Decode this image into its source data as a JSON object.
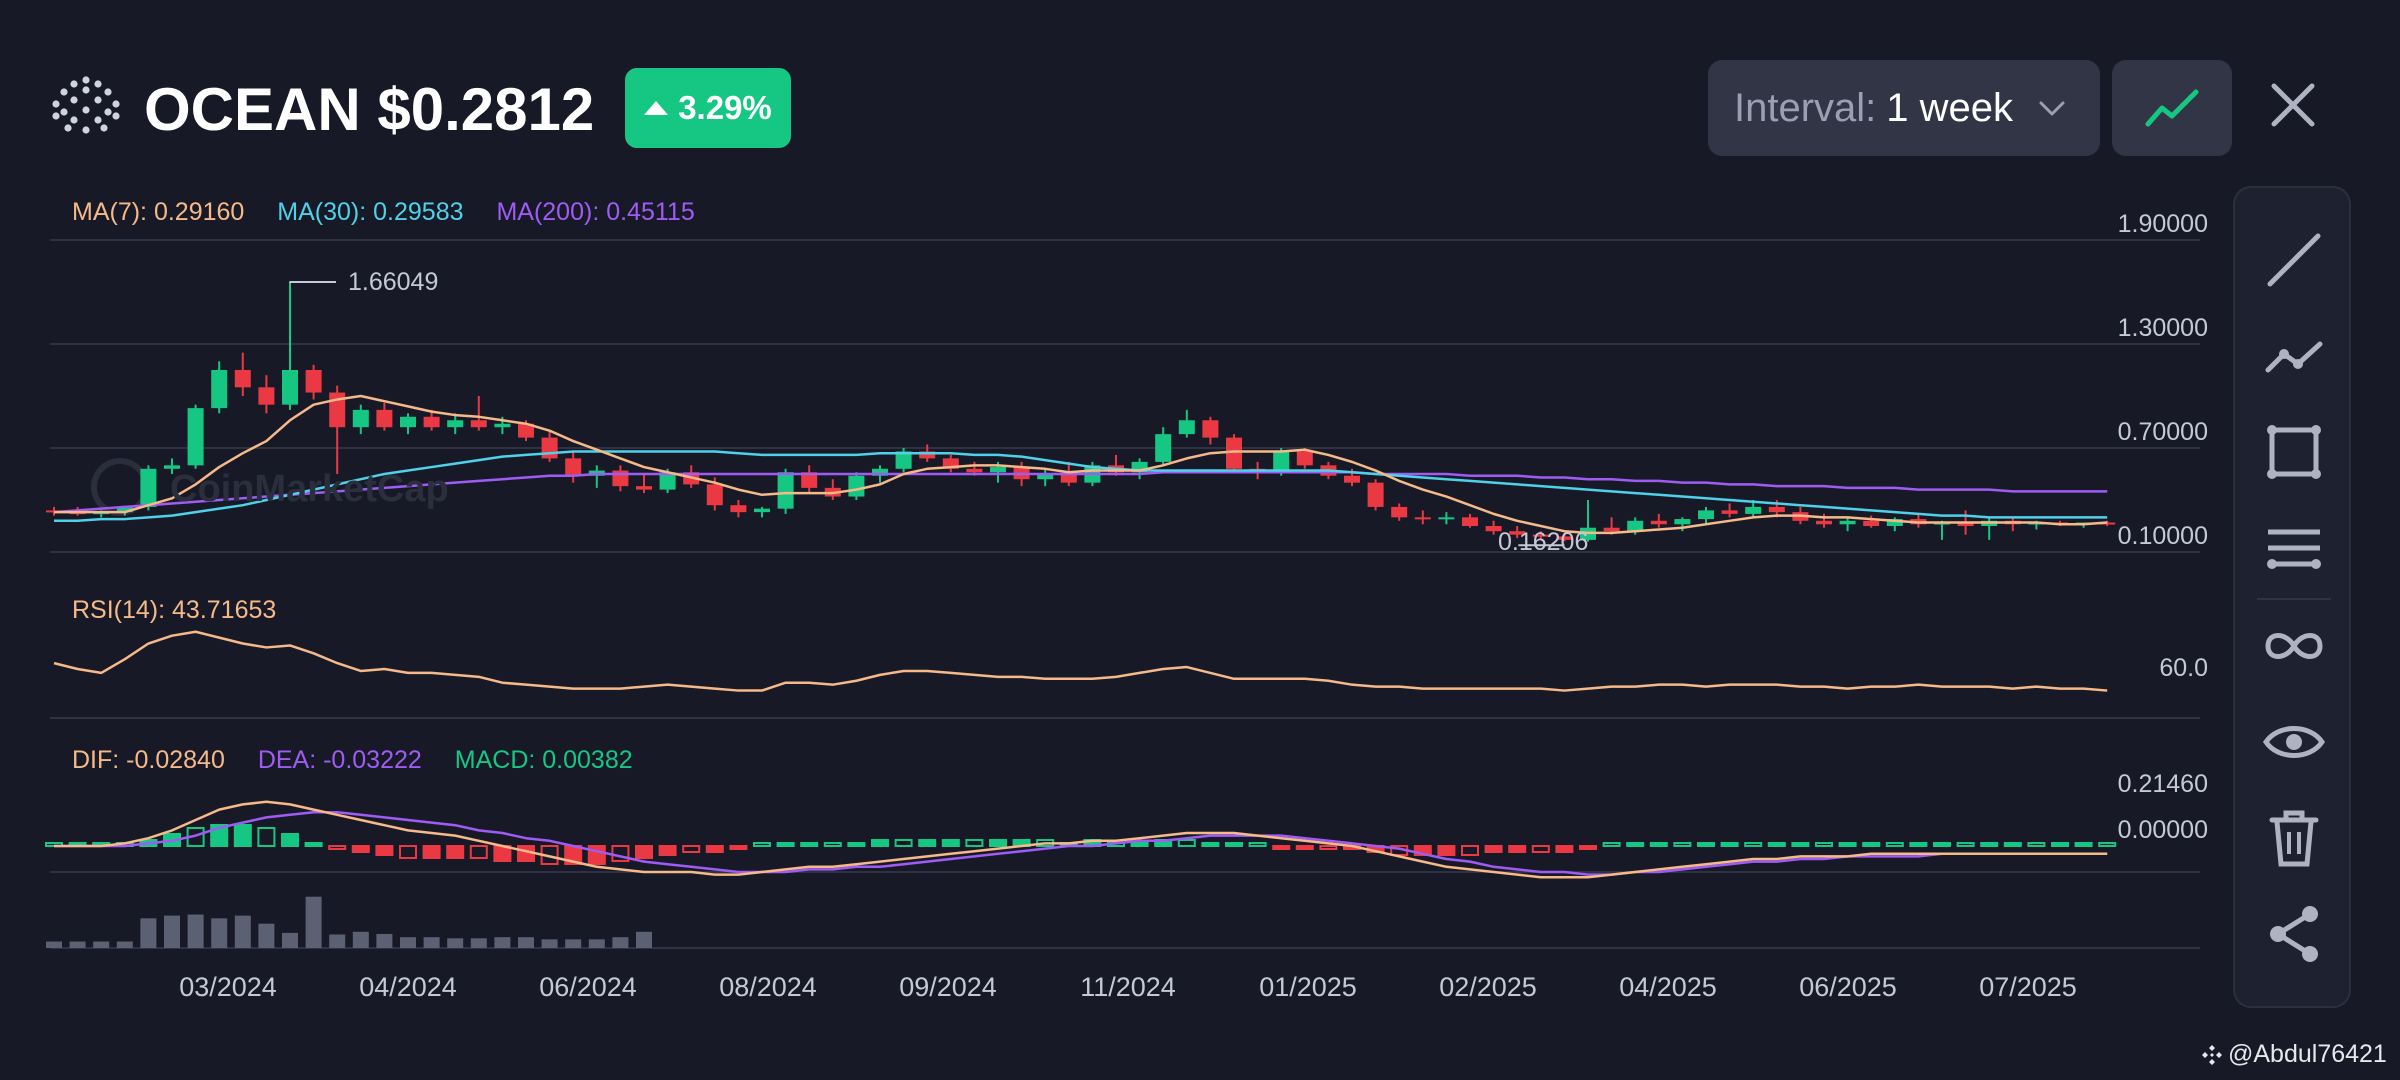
{
  "header": {
    "symbol": "OCEAN",
    "price": "$0.2812",
    "title_text": "OCEAN $0.2812",
    "change_percent": "3.29%",
    "change_direction": "up",
    "interval_label": "Interval:",
    "interval_value": "1 week",
    "chart_type_icon": "line-chart-icon",
    "close_icon": "close-icon"
  },
  "price_panel": {
    "legend": [
      {
        "label": "MA(7): 0.29160",
        "color": "#f6b98a"
      },
      {
        "label": "MA(30): 0.29583",
        "color": "#4fd1e9"
      },
      {
        "label": "MA(200): 0.45115",
        "color": "#9f5cf5"
      }
    ],
    "y_ticks": [
      "1.90000",
      "1.30000",
      "0.70000",
      "0.10000"
    ],
    "high_label": "1.66049",
    "low_label": "0.16206",
    "watermark": "CoinMarketCap"
  },
  "rsi_panel": {
    "legend": "RSI(14): 43.71653",
    "y_tick": "60.0"
  },
  "macd_panel": {
    "legend": [
      {
        "label": "DIF: -0.02840",
        "color": "#f6b98a"
      },
      {
        "label": "DEA: -0.03222",
        "color": "#9f5cf5"
      },
      {
        "label": "MACD: 0.00382",
        "color": "#16c784"
      }
    ],
    "y_ticks": [
      "0.21460",
      "0.00000"
    ]
  },
  "x_axis": [
    "03/2024",
    "04/2024",
    "06/2024",
    "08/2024",
    "09/2024",
    "11/2024",
    "01/2025",
    "02/2025",
    "04/2025",
    "06/2025",
    "07/2025"
  ],
  "toolbar": [
    {
      "icon": "trend-line-icon"
    },
    {
      "icon": "polyline-icon"
    },
    {
      "icon": "rectangle-icon"
    },
    {
      "icon": "parallel-lines-icon"
    },
    {
      "icon": "infinity-icon"
    },
    {
      "icon": "eye-icon"
    },
    {
      "icon": "trash-icon"
    },
    {
      "icon": "share-icon"
    }
  ],
  "credit": "@Abdul76421",
  "colors": {
    "up": "#16c784",
    "down": "#ea3943",
    "background": "#171a26",
    "panel": "#323546"
  },
  "chart_data": {
    "type": "candlestick",
    "interval": "1 week",
    "ylim": [
      0.1,
      1.9
    ],
    "candles": [
      [
        0.34,
        0.36,
        0.31,
        0.33
      ],
      [
        0.33,
        0.36,
        0.31,
        0.32
      ],
      [
        0.32,
        0.34,
        0.3,
        0.33
      ],
      [
        0.33,
        0.36,
        0.31,
        0.36
      ],
      [
        0.36,
        0.6,
        0.34,
        0.58
      ],
      [
        0.58,
        0.64,
        0.55,
        0.6
      ],
      [
        0.6,
        0.95,
        0.58,
        0.93
      ],
      [
        0.93,
        1.2,
        0.9,
        1.15
      ],
      [
        1.15,
        1.25,
        1.0,
        1.05
      ],
      [
        1.05,
        1.12,
        0.9,
        0.95
      ],
      [
        0.95,
        1.66049,
        0.92,
        1.15
      ],
      [
        1.15,
        1.18,
        0.98,
        1.02
      ],
      [
        1.02,
        1.06,
        0.55,
        0.82
      ],
      [
        0.82,
        0.95,
        0.78,
        0.92
      ],
      [
        0.92,
        0.96,
        0.8,
        0.82
      ],
      [
        0.82,
        0.9,
        0.78,
        0.88
      ],
      [
        0.88,
        0.92,
        0.8,
        0.82
      ],
      [
        0.82,
        0.9,
        0.78,
        0.86
      ],
      [
        0.86,
        1.0,
        0.8,
        0.82
      ],
      [
        0.82,
        0.88,
        0.78,
        0.84
      ],
      [
        0.84,
        0.86,
        0.74,
        0.76
      ],
      [
        0.76,
        0.8,
        0.62,
        0.64
      ],
      [
        0.64,
        0.68,
        0.5,
        0.54
      ],
      [
        0.54,
        0.6,
        0.47,
        0.57
      ],
      [
        0.57,
        0.6,
        0.45,
        0.48
      ],
      [
        0.48,
        0.55,
        0.44,
        0.46
      ],
      [
        0.46,
        0.58,
        0.44,
        0.56
      ],
      [
        0.56,
        0.6,
        0.47,
        0.49
      ],
      [
        0.49,
        0.53,
        0.34,
        0.37
      ],
      [
        0.37,
        0.4,
        0.3,
        0.33
      ],
      [
        0.33,
        0.36,
        0.3,
        0.35
      ],
      [
        0.35,
        0.58,
        0.32,
        0.56
      ],
      [
        0.56,
        0.6,
        0.44,
        0.47
      ],
      [
        0.47,
        0.52,
        0.4,
        0.42
      ],
      [
        0.42,
        0.56,
        0.4,
        0.54
      ],
      [
        0.54,
        0.6,
        0.5,
        0.58
      ],
      [
        0.58,
        0.7,
        0.56,
        0.68
      ],
      [
        0.68,
        0.72,
        0.62,
        0.64
      ],
      [
        0.64,
        0.66,
        0.56,
        0.58
      ],
      [
        0.58,
        0.62,
        0.54,
        0.56
      ],
      [
        0.56,
        0.62,
        0.5,
        0.59
      ],
      [
        0.59,
        0.62,
        0.48,
        0.52
      ],
      [
        0.52,
        0.58,
        0.48,
        0.55
      ],
      [
        0.55,
        0.62,
        0.48,
        0.5
      ],
      [
        0.5,
        0.62,
        0.48,
        0.6
      ],
      [
        0.6,
        0.66,
        0.54,
        0.56
      ],
      [
        0.56,
        0.64,
        0.52,
        0.62
      ],
      [
        0.62,
        0.82,
        0.6,
        0.78
      ],
      [
        0.78,
        0.92,
        0.76,
        0.86
      ],
      [
        0.86,
        0.88,
        0.72,
        0.76
      ],
      [
        0.76,
        0.78,
        0.56,
        0.58
      ],
      [
        0.58,
        0.62,
        0.52,
        0.56
      ],
      [
        0.56,
        0.7,
        0.54,
        0.68
      ],
      [
        0.68,
        0.7,
        0.58,
        0.6
      ],
      [
        0.6,
        0.62,
        0.52,
        0.54
      ],
      [
        0.54,
        0.58,
        0.48,
        0.5
      ],
      [
        0.5,
        0.52,
        0.34,
        0.36
      ],
      [
        0.36,
        0.38,
        0.28,
        0.3
      ],
      [
        0.3,
        0.34,
        0.26,
        0.29
      ],
      [
        0.29,
        0.33,
        0.26,
        0.3
      ],
      [
        0.3,
        0.32,
        0.24,
        0.25
      ],
      [
        0.25,
        0.28,
        0.2,
        0.22
      ],
      [
        0.22,
        0.25,
        0.18,
        0.2
      ],
      [
        0.2,
        0.22,
        0.17,
        0.19
      ],
      [
        0.19,
        0.21,
        0.16206,
        0.17
      ],
      [
        0.17,
        0.4,
        0.16,
        0.24
      ],
      [
        0.24,
        0.3,
        0.2,
        0.22
      ],
      [
        0.22,
        0.3,
        0.2,
        0.28
      ],
      [
        0.28,
        0.32,
        0.24,
        0.26
      ],
      [
        0.26,
        0.3,
        0.22,
        0.29
      ],
      [
        0.29,
        0.36,
        0.26,
        0.34
      ],
      [
        0.34,
        0.38,
        0.3,
        0.32
      ],
      [
        0.32,
        0.4,
        0.3,
        0.36
      ],
      [
        0.36,
        0.4,
        0.3,
        0.33
      ],
      [
        0.33,
        0.36,
        0.26,
        0.28
      ],
      [
        0.28,
        0.32,
        0.24,
        0.26
      ],
      [
        0.26,
        0.3,
        0.22,
        0.28
      ],
      [
        0.28,
        0.31,
        0.24,
        0.25
      ],
      [
        0.25,
        0.3,
        0.22,
        0.29
      ],
      [
        0.29,
        0.32,
        0.24,
        0.26
      ],
      [
        0.26,
        0.28,
        0.17,
        0.27
      ],
      [
        0.27,
        0.34,
        0.2,
        0.25
      ],
      [
        0.25,
        0.3,
        0.17,
        0.28
      ],
      [
        0.28,
        0.3,
        0.22,
        0.26
      ],
      [
        0.26,
        0.28,
        0.23,
        0.27
      ],
      [
        0.27,
        0.28,
        0.25,
        0.26
      ],
      [
        0.26,
        0.27,
        0.24,
        0.27
      ],
      [
        0.27,
        0.28,
        0.25,
        0.26
      ]
    ],
    "candle_fields": [
      "open",
      "high",
      "low",
      "close"
    ],
    "ma7": [
      0.33,
      0.33,
      0.33,
      0.33,
      0.37,
      0.41,
      0.49,
      0.59,
      0.67,
      0.74,
      0.86,
      0.95,
      0.98,
      1.0,
      0.97,
      0.94,
      0.91,
      0.89,
      0.88,
      0.86,
      0.84,
      0.8,
      0.74,
      0.69,
      0.64,
      0.59,
      0.56,
      0.53,
      0.5,
      0.46,
      0.43,
      0.44,
      0.44,
      0.44,
      0.46,
      0.49,
      0.55,
      0.58,
      0.59,
      0.6,
      0.6,
      0.59,
      0.58,
      0.56,
      0.57,
      0.57,
      0.57,
      0.6,
      0.64,
      0.67,
      0.68,
      0.68,
      0.68,
      0.69,
      0.66,
      0.62,
      0.57,
      0.51,
      0.46,
      0.42,
      0.37,
      0.32,
      0.28,
      0.25,
      0.22,
      0.21,
      0.21,
      0.22,
      0.23,
      0.24,
      0.26,
      0.28,
      0.3,
      0.31,
      0.31,
      0.3,
      0.3,
      0.29,
      0.28,
      0.27,
      0.27,
      0.27,
      0.27,
      0.27,
      0.27,
      0.26,
      0.26,
      0.27
    ],
    "ma30": [
      0.28,
      0.28,
      0.29,
      0.29,
      0.3,
      0.31,
      0.33,
      0.35,
      0.37,
      0.4,
      0.43,
      0.46,
      0.49,
      0.52,
      0.55,
      0.57,
      0.59,
      0.61,
      0.63,
      0.65,
      0.66,
      0.67,
      0.68,
      0.68,
      0.68,
      0.68,
      0.68,
      0.68,
      0.68,
      0.67,
      0.66,
      0.66,
      0.66,
      0.66,
      0.66,
      0.67,
      0.67,
      0.67,
      0.67,
      0.66,
      0.66,
      0.65,
      0.63,
      0.61,
      0.59,
      0.58,
      0.57,
      0.57,
      0.57,
      0.57,
      0.57,
      0.57,
      0.57,
      0.57,
      0.57,
      0.56,
      0.55,
      0.54,
      0.53,
      0.52,
      0.51,
      0.5,
      0.49,
      0.48,
      0.47,
      0.46,
      0.45,
      0.44,
      0.43,
      0.42,
      0.41,
      0.4,
      0.39,
      0.38,
      0.37,
      0.36,
      0.35,
      0.34,
      0.33,
      0.32,
      0.31,
      0.31,
      0.3,
      0.3,
      0.3,
      0.3,
      0.3,
      0.3
    ],
    "ma200": [
      0.33,
      0.34,
      0.35,
      0.36,
      0.37,
      0.38,
      0.39,
      0.4,
      0.41,
      0.42,
      0.43,
      0.44,
      0.45,
      0.46,
      0.47,
      0.48,
      0.49,
      0.5,
      0.51,
      0.52,
      0.53,
      0.54,
      0.54,
      0.55,
      0.55,
      0.55,
      0.55,
      0.55,
      0.55,
      0.55,
      0.55,
      0.55,
      0.55,
      0.55,
      0.55,
      0.55,
      0.55,
      0.55,
      0.55,
      0.55,
      0.55,
      0.55,
      0.55,
      0.55,
      0.55,
      0.55,
      0.55,
      0.56,
      0.56,
      0.56,
      0.56,
      0.56,
      0.56,
      0.56,
      0.56,
      0.56,
      0.55,
      0.55,
      0.55,
      0.55,
      0.54,
      0.54,
      0.54,
      0.53,
      0.53,
      0.52,
      0.52,
      0.51,
      0.51,
      0.5,
      0.5,
      0.49,
      0.49,
      0.48,
      0.48,
      0.48,
      0.47,
      0.47,
      0.47,
      0.46,
      0.46,
      0.46,
      0.46,
      0.45,
      0.45,
      0.45,
      0.45,
      0.45
    ],
    "rsi": [
      58,
      55,
      53,
      60,
      68,
      72,
      74,
      71,
      68,
      66,
      67,
      63,
      58,
      54,
      55,
      53,
      53,
      52,
      51,
      48,
      47,
      46,
      45,
      45,
      45,
      46,
      47,
      46,
      45,
      44,
      44,
      48,
      48,
      47,
      49,
      52,
      54,
      54,
      53,
      52,
      51,
      51,
      50,
      50,
      50,
      51,
      53,
      55,
      56,
      53,
      50,
      50,
      50,
      50,
      49,
      47,
      46,
      46,
      45,
      45,
      45,
      45,
      45,
      45,
      44,
      45,
      46,
      46,
      47,
      47,
      46,
      47,
      47,
      47,
      46,
      46,
      45,
      46,
      46,
      47,
      46,
      46,
      46,
      45,
      46,
      45,
      45,
      44
    ],
    "rsi_range": [
      30,
      80
    ],
    "macd_dif": [
      0.0,
      0.0,
      0.0,
      0.01,
      0.03,
      0.06,
      0.1,
      0.14,
      0.16,
      0.17,
      0.16,
      0.14,
      0.12,
      0.1,
      0.08,
      0.06,
      0.05,
      0.04,
      0.02,
      0.0,
      -0.02,
      -0.04,
      -0.06,
      -0.08,
      -0.09,
      -0.1,
      -0.1,
      -0.1,
      -0.11,
      -0.11,
      -0.1,
      -0.09,
      -0.08,
      -0.08,
      -0.07,
      -0.06,
      -0.05,
      -0.04,
      -0.03,
      -0.02,
      -0.01,
      0.0,
      0.01,
      0.01,
      0.02,
      0.02,
      0.03,
      0.04,
      0.05,
      0.05,
      0.05,
      0.04,
      0.03,
      0.02,
      0.01,
      0.0,
      -0.02,
      -0.04,
      -0.06,
      -0.08,
      -0.09,
      -0.1,
      -0.11,
      -0.12,
      -0.12,
      -0.12,
      -0.11,
      -0.1,
      -0.09,
      -0.08,
      -0.07,
      -0.06,
      -0.05,
      -0.05,
      -0.04,
      -0.04,
      -0.04,
      -0.03,
      -0.03,
      -0.03,
      -0.03,
      -0.03,
      -0.03,
      -0.03,
      -0.03,
      -0.03,
      -0.03,
      -0.03
    ],
    "macd_dea": [
      0.0,
      0.0,
      0.0,
      0.0,
      0.01,
      0.02,
      0.04,
      0.07,
      0.09,
      0.11,
      0.12,
      0.13,
      0.13,
      0.12,
      0.11,
      0.1,
      0.09,
      0.08,
      0.06,
      0.05,
      0.03,
      0.02,
      0.0,
      -0.02,
      -0.04,
      -0.06,
      -0.07,
      -0.08,
      -0.09,
      -0.1,
      -0.1,
      -0.1,
      -0.09,
      -0.09,
      -0.08,
      -0.08,
      -0.07,
      -0.06,
      -0.05,
      -0.04,
      -0.03,
      -0.02,
      -0.01,
      0.0,
      0.0,
      0.01,
      0.02,
      0.02,
      0.03,
      0.04,
      0.04,
      0.04,
      0.04,
      0.03,
      0.02,
      0.01,
      0.0,
      -0.01,
      -0.03,
      -0.05,
      -0.06,
      -0.08,
      -0.09,
      -0.1,
      -0.1,
      -0.11,
      -0.11,
      -0.1,
      -0.1,
      -0.09,
      -0.08,
      -0.07,
      -0.06,
      -0.06,
      -0.05,
      -0.05,
      -0.04,
      -0.04,
      -0.04,
      -0.04,
      -0.03,
      -0.03,
      -0.03,
      -0.03,
      -0.03,
      -0.03,
      -0.03,
      -0.03
    ],
    "macd_range": [
      -0.16,
      0.2146
    ],
    "volume": [
      0.12,
      0.12,
      0.12,
      0.12,
      0.55,
      0.6,
      0.62,
      0.55,
      0.6,
      0.45,
      0.28,
      0.95,
      0.25,
      0.3,
      0.26,
      0.2,
      0.2,
      0.18,
      0.18,
      0.2,
      0.2,
      0.16,
      0.16,
      0.16,
      0.2,
      0.3
    ]
  }
}
